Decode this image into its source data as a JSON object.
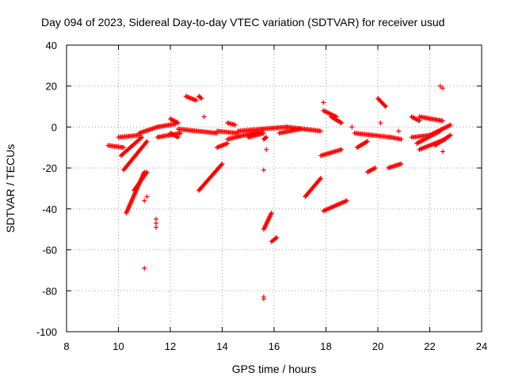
{
  "chart_data": {
    "type": "scatter",
    "title": "Day 094 of 2023, Sidereal Day-to-day VTEC variation (SDTVAR) for receiver usud",
    "xlabel": "GPS time / hours",
    "ylabel": "SDTVAR / TECUs",
    "xlim": [
      8,
      24
    ],
    "ylim": [
      -100,
      40
    ],
    "xticks": [
      8,
      10,
      12,
      14,
      16,
      18,
      20,
      22,
      24
    ],
    "yticks": [
      -100,
      -80,
      -60,
      -40,
      -20,
      0,
      20,
      40
    ],
    "grid": true,
    "marker": "+",
    "color": "#ff0000",
    "segments": [
      {
        "x0": 9.6,
        "y0": -9,
        "x1": 10.2,
        "y1": -10
      },
      {
        "x0": 10.0,
        "y0": -5,
        "x1": 10.8,
        "y1": -4
      },
      {
        "x0": 10.8,
        "y0": -3,
        "x1": 11.5,
        "y1": 0
      },
      {
        "x0": 11.5,
        "y0": 0,
        "x1": 12.2,
        "y1": 1.5
      },
      {
        "x0": 10.1,
        "y0": -14,
        "x1": 10.9,
        "y1": -5
      },
      {
        "x0": 10.2,
        "y0": -21,
        "x1": 11.1,
        "y1": -7
      },
      {
        "x0": 10.3,
        "y0": -42,
        "x1": 11.0,
        "y1": -22
      },
      {
        "x0": 10.6,
        "y0": -31,
        "x1": 11.1,
        "y1": -22
      },
      {
        "x0": 11.5,
        "y0": -5,
        "x1": 12.4,
        "y1": -3
      },
      {
        "x0": 12.0,
        "y0": 4,
        "x1": 12.3,
        "y1": 2
      },
      {
        "x0": 12.0,
        "y0": -3,
        "x1": 12.3,
        "y1": -5
      },
      {
        "x0": 12.3,
        "y0": -1,
        "x1": 13.8,
        "y1": -3
      },
      {
        "x0": 13.8,
        "y0": -2,
        "x1": 14.6,
        "y1": -3
      },
      {
        "x0": 12.6,
        "y0": 15,
        "x1": 13.0,
        "y1": 13
      },
      {
        "x0": 13.1,
        "y0": 15,
        "x1": 13.2,
        "y1": 14
      },
      {
        "x0": 13.1,
        "y0": -31,
        "x1": 14.0,
        "y1": -18
      },
      {
        "x0": 13.8,
        "y0": -10,
        "x1": 14.2,
        "y1": -8
      },
      {
        "x0": 14.2,
        "y0": 2,
        "x1": 14.5,
        "y1": 1
      },
      {
        "x0": 14.2,
        "y0": -6,
        "x1": 15.5,
        "y1": -2
      },
      {
        "x0": 14.6,
        "y0": -2,
        "x1": 15.5,
        "y1": -1
      },
      {
        "x0": 15.5,
        "y0": -1,
        "x1": 16.5,
        "y1": 0
      },
      {
        "x0": 16.5,
        "y0": 0,
        "x1": 17.8,
        "y1": -2
      },
      {
        "x0": 15.0,
        "y0": -5,
        "x1": 15.6,
        "y1": -3
      },
      {
        "x0": 15.6,
        "y0": -50,
        "x1": 15.9,
        "y1": -42
      },
      {
        "x0": 15.9,
        "y0": -56,
        "x1": 16.1,
        "y1": -54
      },
      {
        "x0": 15.6,
        "y0": -6,
        "x1": 15.7,
        "y1": -5
      },
      {
        "x0": 16.2,
        "y0": -3,
        "x1": 17.0,
        "y1": -1
      },
      {
        "x0": 17.2,
        "y0": -34,
        "x1": 17.8,
        "y1": -25
      },
      {
        "x0": 17.8,
        "y0": -14,
        "x1": 18.6,
        "y1": -11
      },
      {
        "x0": 17.9,
        "y0": -41,
        "x1": 18.8,
        "y1": -36
      },
      {
        "x0": 17.9,
        "y0": 8,
        "x1": 18.4,
        "y1": 5
      },
      {
        "x0": 18.2,
        "y0": 5,
        "x1": 18.6,
        "y1": 2
      },
      {
        "x0": 19.1,
        "y0": -3,
        "x1": 19.8,
        "y1": -4
      },
      {
        "x0": 19.8,
        "y0": -4,
        "x1": 20.5,
        "y1": -5
      },
      {
        "x0": 20.5,
        "y0": -5,
        "x1": 20.9,
        "y1": -6
      },
      {
        "x0": 19.2,
        "y0": -10,
        "x1": 19.6,
        "y1": -7
      },
      {
        "x0": 19.6,
        "y0": -22,
        "x1": 19.9,
        "y1": -20
      },
      {
        "x0": 20.0,
        "y0": 14,
        "x1": 20.3,
        "y1": 10
      },
      {
        "x0": 20.4,
        "y0": -20,
        "x1": 20.9,
        "y1": -18
      },
      {
        "x0": 21.3,
        "y0": -5,
        "x1": 22.0,
        "y1": -4
      },
      {
        "x0": 21.3,
        "y0": 5,
        "x1": 21.6,
        "y1": 3
      },
      {
        "x0": 21.6,
        "y0": 5,
        "x1": 22.5,
        "y1": 3
      },
      {
        "x0": 22.0,
        "y0": -4,
        "x1": 22.8,
        "y1": 1
      },
      {
        "x0": 21.5,
        "y0": -8,
        "x1": 22.4,
        "y1": -2
      },
      {
        "x0": 21.6,
        "y0": -11,
        "x1": 22.6,
        "y1": -6
      },
      {
        "x0": 22.2,
        "y0": -9,
        "x1": 22.8,
        "y1": -4
      }
    ],
    "points": [
      [
        11.0,
        -69
      ],
      [
        11.0,
        -36
      ],
      [
        11.1,
        -34
      ],
      [
        11.45,
        -45
      ],
      [
        11.45,
        -47
      ],
      [
        11.45,
        -49
      ],
      [
        13.3,
        5
      ],
      [
        15.6,
        -21
      ],
      [
        15.6,
        -84
      ],
      [
        15.6,
        -83
      ],
      [
        15.7,
        -11
      ],
      [
        17.9,
        12
      ],
      [
        19.0,
        0
      ],
      [
        20.1,
        2
      ],
      [
        20.8,
        -2
      ],
      [
        22.4,
        20
      ],
      [
        22.5,
        -12
      ],
      [
        22.5,
        19
      ]
    ]
  }
}
